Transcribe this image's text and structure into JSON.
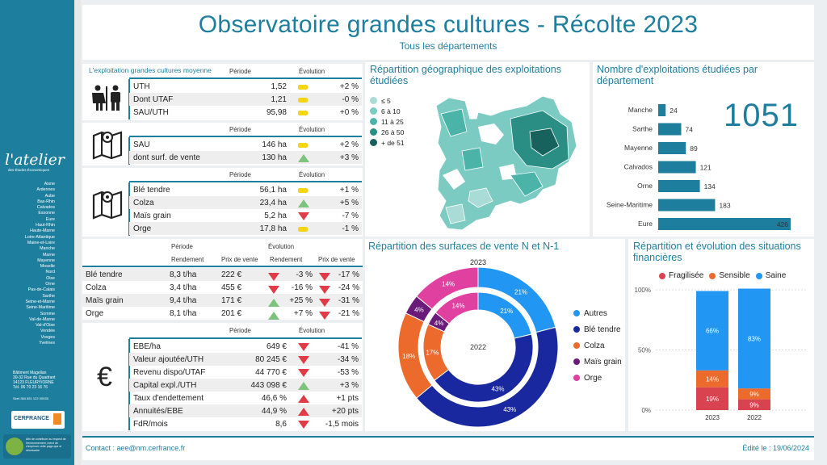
{
  "title": "Observatoire grandes cultures - Récolte 2023",
  "subtitle": "Tous les départements",
  "sidebar": {
    "logo_text": "l'atelier",
    "logo_sub": "des Études Économiques",
    "departments": [
      "Aisne",
      "Ardennes",
      "Aube",
      "Bas-Rhin",
      "Calvados",
      "Essonne",
      "Eure",
      "Haut-Rhin",
      "Haute-Marne",
      "Loire-Atlantique",
      "Maine-et-Loire",
      "Manche",
      "Marne",
      "Mayenne",
      "Moselle",
      "Nord",
      "Oise",
      "Orne",
      "Pas-de-Calais",
      "Sarthe",
      "Seine-et-Marne",
      "Seine-Maritime",
      "Somme",
      "Val-de-Marne",
      "Val-d'Oise",
      "Vendée",
      "Vosges",
      "Yvelines"
    ],
    "address": [
      "Bâtiment Magellan",
      "30-32 Rue du Quadrant",
      "14123 FLEURY/ORNE",
      "Tél. 06 70 23 16 76"
    ],
    "siret": "Siret 384 851 122 00035",
    "cerfrance": "CERFRANCE",
    "eco_text": "Afin de contribuer au respect de l'environnement, merci de n'imprimer cette page que si nécessaire"
  },
  "kpi": {
    "title": "L'exploitation grandes cultures moyenne",
    "periode": "Période",
    "evolution": "Évolution",
    "g1": [
      {
        "l": "UTH",
        "v": "1,52",
        "p": "+2 %",
        "i": "flat"
      },
      {
        "l": "Dont UTAF",
        "v": "1,21",
        "p": "-0 %",
        "i": "flat"
      },
      {
        "l": "SAU/UTH",
        "v": "95,98",
        "p": "+0 %",
        "i": "flat"
      }
    ],
    "g2": [
      {
        "l": "SAU",
        "v": "146 ha",
        "p": "+2 %",
        "i": "flat"
      },
      {
        "l": "dont surf. de vente",
        "v": "130 ha",
        "p": "+3 %",
        "i": "up"
      }
    ],
    "g3": [
      {
        "l": "Blé tendre",
        "v": "56,1 ha",
        "p": "+1 %",
        "i": "flat"
      },
      {
        "l": "Colza",
        "v": "23,4 ha",
        "p": "+5 %",
        "i": "up"
      },
      {
        "l": "Maïs grain",
        "v": "5,2 ha",
        "p": "-7 %",
        "i": "down"
      },
      {
        "l": "Orge",
        "v": "17,8 ha",
        "p": "-1 %",
        "i": "flat"
      }
    ],
    "prix": {
      "h_periode": "Période",
      "h_evol": "Évolution",
      "h_rend": "Rendement",
      "h_prix": "Prix de vente",
      "rows": [
        {
          "l": "Blé tendre",
          "r": "8,3 t/ha",
          "p": "222 €",
          "er": "-3 %",
          "ir": "down",
          "ep": "-17 %",
          "ip": "down"
        },
        {
          "l": "Colza",
          "r": "3,4 t/ha",
          "p": "455 €",
          "er": "-16 %",
          "ir": "down",
          "ep": "-24 %",
          "ip": "down"
        },
        {
          "l": "Maïs grain",
          "r": "9,4 t/ha",
          "p": "171 €",
          "er": "+25 %",
          "ir": "up",
          "ep": "-31 %",
          "ip": "down"
        },
        {
          "l": "Orge",
          "r": "8,1 t/ha",
          "p": "201 €",
          "er": "+7 %",
          "ir": "up",
          "ep": "-21 %",
          "ip": "down"
        }
      ]
    },
    "g5": [
      {
        "l": "EBE/ha",
        "v": "649 €",
        "p": "-41 %",
        "i": "down"
      },
      {
        "l": "Valeur ajoutée/UTH",
        "v": "80 245 €",
        "p": "-34 %",
        "i": "down"
      },
      {
        "l": "Revenu dispo/UTAF",
        "v": "44 770 €",
        "p": "-53 %",
        "i": "down"
      },
      {
        "l": "Capital expl./UTH",
        "v": "443 098 €",
        "p": "+3 %",
        "i": "up"
      },
      {
        "l": "Taux d'endettement",
        "v": "46,6 %",
        "p": "+1 pts",
        "i": "upred"
      },
      {
        "l": "Annuités/EBE",
        "v": "44,9 %",
        "p": "+20 pts",
        "i": "upred"
      },
      {
        "l": "FdR/mois",
        "v": "8,6",
        "p": "-1,5 mois",
        "i": "down"
      }
    ]
  },
  "map": {
    "title": "Répartition géographique des exploitations étudiées",
    "legend": [
      "≤ 5",
      "6 à 10",
      "11 à 25",
      "26 à 50",
      "+ de 51"
    ],
    "colors": [
      "#a9dcd6",
      "#7ccbc2",
      "#4bb3a8",
      "#2a8e85",
      "#17625c"
    ]
  },
  "counts": {
    "title": "Nombre d'exploitations étudiées par département",
    "total": "1051",
    "chart_data": {
      "type": "bar",
      "categories": [
        "Manche",
        "Sarthe",
        "Mayenne",
        "Calvados",
        "Orne",
        "Seine-Maritime",
        "Eure"
      ],
      "values": [
        24,
        74,
        89,
        121,
        134,
        183,
        426
      ]
    }
  },
  "donut": {
    "title": "Répartition des surfaces de vente N et N-1",
    "label_outer": "2023",
    "label_inner": "2022",
    "chart_data": {
      "type": "pie",
      "categories": [
        "Autres",
        "Blé tendre",
        "Colza",
        "Maïs grain",
        "Orge"
      ],
      "colors": [
        "#2196f3",
        "#1a28a0",
        "#ec6a2c",
        "#6a1b7a",
        "#e040a0"
      ],
      "series": [
        {
          "name": "2023",
          "values": [
            21,
            43,
            18,
            4,
            14
          ]
        },
        {
          "name": "2022",
          "values": [
            21,
            43,
            17,
            4,
            14
          ]
        }
      ]
    }
  },
  "fin": {
    "title": "Répartition et évolution des situations financières",
    "legend": [
      "Fragilisée",
      "Sensible",
      "Saine"
    ],
    "colors": [
      "#d9434f",
      "#ec6a2c",
      "#2196f3"
    ],
    "chart_data": {
      "type": "bar",
      "categories": [
        "2023",
        "2022"
      ],
      "series": [
        {
          "name": "Fragilisée",
          "values": [
            19,
            9
          ]
        },
        {
          "name": "Sensible",
          "values": [
            14,
            9
          ]
        },
        {
          "name": "Saine",
          "values": [
            66,
            83
          ]
        }
      ],
      "yticks": [
        "100%",
        "50%",
        "0%"
      ]
    }
  },
  "footer": {
    "contact": "Contact : aee@nm.cerfrance.fr",
    "edite": "Édité le : 19/06/2024"
  }
}
